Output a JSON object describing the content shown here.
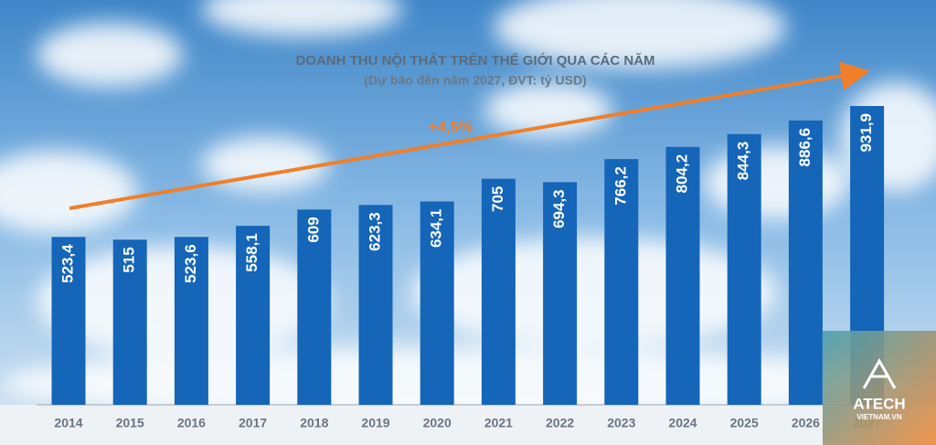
{
  "chart_data": {
    "type": "bar",
    "title": "DOANH THU NỘI THẤT TRÊN THẾ GIỚI QUA CÁC NĂM",
    "subtitle": "(Dự báo đến năm 2027, ĐVT: tỷ USD)",
    "annotation": "+4,5%",
    "categories": [
      "2014",
      "2015",
      "2016",
      "2017",
      "2018",
      "2019",
      "2020",
      "2021",
      "2022",
      "2023",
      "2024",
      "2025",
      "2026",
      "2027"
    ],
    "values": [
      523.4,
      515,
      523.6,
      558.1,
      609,
      623.3,
      634.1,
      705,
      694.3,
      766.2,
      804.2,
      844.3,
      886.6,
      931.9
    ],
    "value_labels": [
      "523,4",
      "515",
      "523,6",
      "558,1",
      "609",
      "623,3",
      "634,1",
      "705",
      "694,3",
      "766,2",
      "804,2",
      "844,3",
      "886,6",
      "931,9"
    ],
    "color": "#1565b8"
  },
  "logo": {
    "name": "ATECH",
    "site": "VIETNAM.VN"
  }
}
